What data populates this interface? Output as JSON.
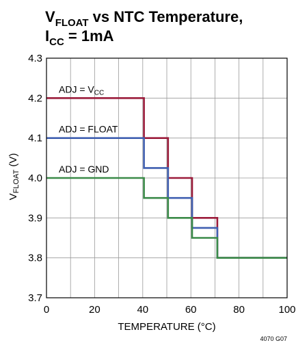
{
  "chart_data": {
    "type": "line",
    "title_line1": {
      "base": "V",
      "sub": "FLOAT",
      "rest": " vs NTC Temperature,"
    },
    "title_line2": {
      "base": "I",
      "sub": "CC",
      "rest": " = 1mA"
    },
    "xlabel": "TEMPERATURE (°C)",
    "ylabel": {
      "base": "V",
      "sub": "FLOAT",
      "rest": " (V)"
    },
    "xlim": [
      0,
      100
    ],
    "ylim": [
      3.7,
      4.3
    ],
    "xticks": [
      "0",
      "20",
      "40",
      "60",
      "80",
      "100"
    ],
    "yticks": [
      "3.7",
      "3.8",
      "3.9",
      "4.0",
      "4.1",
      "4.2",
      "4.3"
    ],
    "grid": true,
    "figure_code": "4070 G07",
    "series": [
      {
        "label_base": "ADJ = V",
        "label_sub": "CC",
        "color": "#9b1b3a",
        "points": [
          [
            0,
            4.2
          ],
          [
            40.5,
            4.2
          ],
          [
            40.5,
            4.1
          ],
          [
            50.5,
            4.1
          ],
          [
            50.5,
            4.0
          ],
          [
            60.5,
            4.0
          ],
          [
            60.5,
            3.9
          ],
          [
            71,
            3.9
          ],
          [
            71,
            3.8
          ],
          [
            100,
            3.8
          ]
        ]
      },
      {
        "label_base": "ADJ = FLOAT",
        "label_sub": "",
        "color": "#3f5fb0",
        "points": [
          [
            0,
            4.1
          ],
          [
            40.5,
            4.1
          ],
          [
            40.5,
            4.025
          ],
          [
            50.5,
            4.025
          ],
          [
            50.5,
            3.95
          ],
          [
            60.5,
            3.95
          ],
          [
            60.5,
            3.875
          ],
          [
            71,
            3.875
          ],
          [
            71,
            3.8
          ],
          [
            100,
            3.8
          ]
        ]
      },
      {
        "label_base": "ADJ = GND",
        "label_sub": "",
        "color": "#3a8a48",
        "points": [
          [
            0,
            4.0
          ],
          [
            40.5,
            4.0
          ],
          [
            40.5,
            3.95
          ],
          [
            50.5,
            3.95
          ],
          [
            50.5,
            3.9
          ],
          [
            60.5,
            3.9
          ],
          [
            60.5,
            3.85
          ],
          [
            71,
            3.85
          ],
          [
            71,
            3.8
          ],
          [
            100,
            3.8
          ]
        ]
      }
    ]
  }
}
